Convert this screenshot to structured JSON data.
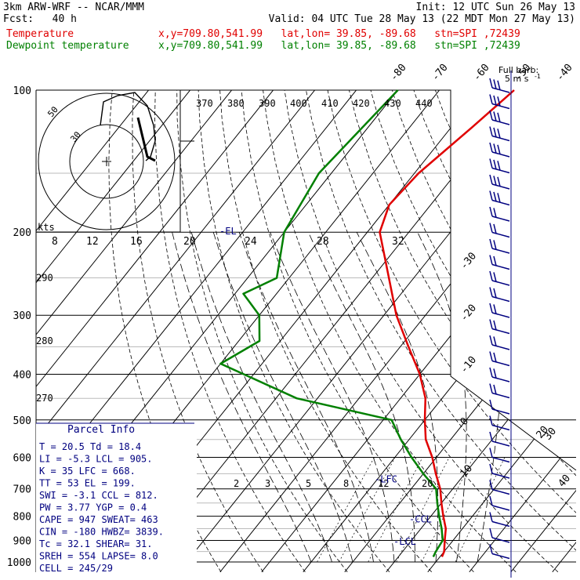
{
  "header": {
    "model": "3km ARW-WRF -- NCAR/MMM",
    "init": "Init: 12 UTC Sun 26 May 13",
    "fcst": "Fcst:   40 h",
    "valid": "Valid: 04 UTC Tue 28 May 13 (22 MDT Mon 27 May 13)",
    "temp_label": "Temperature",
    "dew_label": "Dewpoint temperature",
    "temp_info": "x,y=709.80,541.99   lat,lon= 39.85, -89.68   stn=SPI ,72439",
    "dew_info": "x,y=709.80,541.99   lat,lon= 39.85, -89.68   stn=SPI ,72439",
    "full_barb": "Full barb:",
    "full_barb_unit": "5 m s",
    "full_barb_exp": "-1"
  },
  "colors": {
    "temperature": "#e00000",
    "dewpoint": "#008000",
    "parcel": "#000080",
    "text": "#000000",
    "wind": "#000080"
  },
  "chart_data": {
    "type": "line",
    "pressure_levels": [
      100,
      200,
      300,
      400,
      500,
      600,
      700,
      800,
      900,
      1000
    ],
    "temp_ticks_top": [
      -80,
      -70,
      -60,
      -50,
      -40
    ],
    "temp_ticks_right": [
      -30,
      -20,
      -10,
      0,
      10,
      20,
      30,
      40
    ],
    "theta_e_labels": [
      370,
      380,
      390,
      400,
      410,
      420,
      430,
      440
    ],
    "theta_labels": [
      {
        "v": "290",
        "p": 250
      },
      {
        "v": "280",
        "p": 340
      },
      {
        "v": "270",
        "p": 450
      }
    ],
    "mixing_ratio_labels": [
      "2",
      "3",
      "5",
      "8",
      "12",
      "20"
    ],
    "hodograph": {
      "units": "kts",
      "ring_labels": [
        "30",
        "50"
      ],
      "speed_axis": [
        "8",
        "12",
        "16",
        "20",
        "24",
        "28",
        "32"
      ]
    },
    "temperature": [
      {
        "p": 100,
        "t": -52
      },
      {
        "p": 120,
        "t": -55
      },
      {
        "p": 150,
        "t": -59
      },
      {
        "p": 175,
        "t": -60
      },
      {
        "p": 200,
        "t": -57
      },
      {
        "p": 250,
        "t": -46
      },
      {
        "p": 300,
        "t": -37
      },
      {
        "p": 350,
        "t": -28
      },
      {
        "p": 400,
        "t": -20
      },
      {
        "p": 450,
        "t": -14
      },
      {
        "p": 500,
        "t": -10
      },
      {
        "p": 550,
        "t": -6
      },
      {
        "p": 600,
        "t": -1
      },
      {
        "p": 650,
        "t": 3
      },
      {
        "p": 700,
        "t": 7
      },
      {
        "p": 750,
        "t": 10
      },
      {
        "p": 800,
        "t": 13
      },
      {
        "p": 850,
        "t": 16
      },
      {
        "p": 900,
        "t": 18
      },
      {
        "p": 950,
        "t": 20
      },
      {
        "p": 975,
        "t": 20.5
      }
    ],
    "dewpoint": [
      {
        "p": 100,
        "t": -80
      },
      {
        "p": 150,
        "t": -83
      },
      {
        "p": 200,
        "t": -80
      },
      {
        "p": 250,
        "t": -73
      },
      {
        "p": 270,
        "t": -78
      },
      {
        "p": 300,
        "t": -70
      },
      {
        "p": 340,
        "t": -65
      },
      {
        "p": 380,
        "t": -70
      },
      {
        "p": 450,
        "t": -45
      },
      {
        "p": 500,
        "t": -18
      },
      {
        "p": 550,
        "t": -12
      },
      {
        "p": 600,
        "t": -6
      },
      {
        "p": 650,
        "t": 0
      },
      {
        "p": 700,
        "t": 6
      },
      {
        "p": 750,
        "t": 9
      },
      {
        "p": 800,
        "t": 12
      },
      {
        "p": 850,
        "t": 15
      },
      {
        "p": 900,
        "t": 17.5
      },
      {
        "p": 950,
        "t": 18
      },
      {
        "p": 975,
        "t": 18.4
      }
    ],
    "level_markers": [
      {
        "label": "-EL",
        "p": 199
      },
      {
        "label": "-LFC",
        "p": 668
      },
      {
        "label": "-CCL",
        "p": 812
      },
      {
        "label": "-LCL",
        "p": 905
      }
    ]
  },
  "parcel_info": {
    "title": "Parcel Info",
    "rows": [
      "T   =    20.5  Td  =  18.4",
      "LI  =    -5.3  LCL =  905.",
      "K   =     35   LFC =  668.",
      "TT  =     53   EL  =  199.",
      "SWI =    -3.1  CCL =  812.",
      "PW  =    3.77  YGP =   0.4",
      "CAPE =    947  SWEAT=  463",
      "CIN  =   -180  HWBZ= 3839.",
      "Tc   =   32.1  SHEAR=  31.",
      "SREH =    554  LAPSE=  8.0",
      "CELL = 245/29"
    ]
  }
}
